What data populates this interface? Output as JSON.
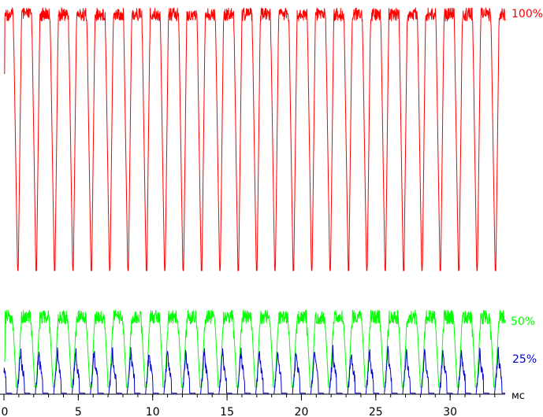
{
  "chart_data": {
    "type": "line",
    "xlabel": "",
    "ylabel": "",
    "x_unit": "мс",
    "xlim": [
      0,
      33.7
    ],
    "x_ticks": [
      "0",
      "5",
      "10",
      "15",
      "20",
      "25",
      "30"
    ],
    "grid": false,
    "legend": "none",
    "period_ms": 1.235,
    "cycles": 27,
    "series": [
      {
        "name": "100%",
        "color": "#ff0000",
        "high": 1.0,
        "low": 0.04
      },
      {
        "name": "50%",
        "color": "#00ff00",
        "high": 0.505,
        "low": 0.015
      },
      {
        "name": "25%",
        "color": "#0000cc",
        "high": 0.26,
        "low": 0.0
      }
    ]
  }
}
